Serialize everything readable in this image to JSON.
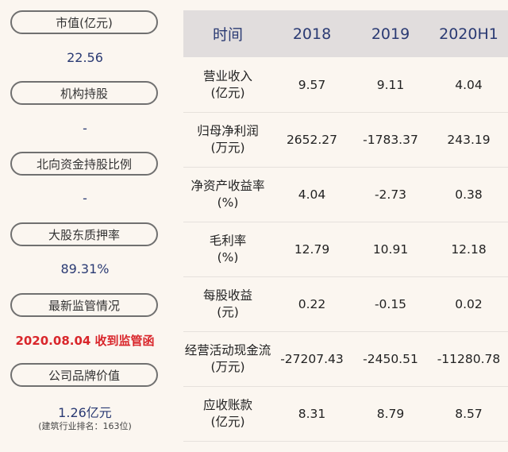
{
  "left": {
    "items": [
      {
        "label": "市值(亿元)",
        "value": "22.56"
      },
      {
        "label": "机构持股",
        "value": "-"
      },
      {
        "label": "北向资金持股比例",
        "value": "-"
      },
      {
        "label": "大股东质押率",
        "value": "89.31%"
      },
      {
        "label": "最新监管情况",
        "value": "2020.08.04 收到监管函"
      },
      {
        "label": "公司品牌价值",
        "value": "1.26亿元",
        "sub": "(建筑行业排名：163位)"
      }
    ]
  },
  "table": {
    "headers": [
      "时间",
      "2018",
      "2019",
      "2020H1"
    ],
    "rows": [
      {
        "label1": "营业收入",
        "label2": "(亿元)",
        "values": [
          "9.57",
          "9.11",
          "4.04"
        ]
      },
      {
        "label1": "归母净利润",
        "label2": "(万元)",
        "values": [
          "2652.27",
          "-1783.37",
          "243.19"
        ]
      },
      {
        "label1": "净资产收益率",
        "label2": "(%)",
        "values": [
          "4.04",
          "-2.73",
          "0.38"
        ]
      },
      {
        "label1": "毛利率",
        "label2": "(%)",
        "values": [
          "12.79",
          "10.91",
          "12.18"
        ]
      },
      {
        "label1": "每股收益",
        "label2": "(元)",
        "values": [
          "0.22",
          "-0.15",
          "0.02"
        ]
      },
      {
        "label1": "经营活动现金流",
        "label2": "(万元)",
        "values": [
          "-27207.43",
          "-2450.51",
          "-11280.78"
        ]
      },
      {
        "label1": "应收账款",
        "label2": "(亿元)",
        "values": [
          "8.31",
          "8.79",
          "8.57"
        ]
      }
    ]
  }
}
